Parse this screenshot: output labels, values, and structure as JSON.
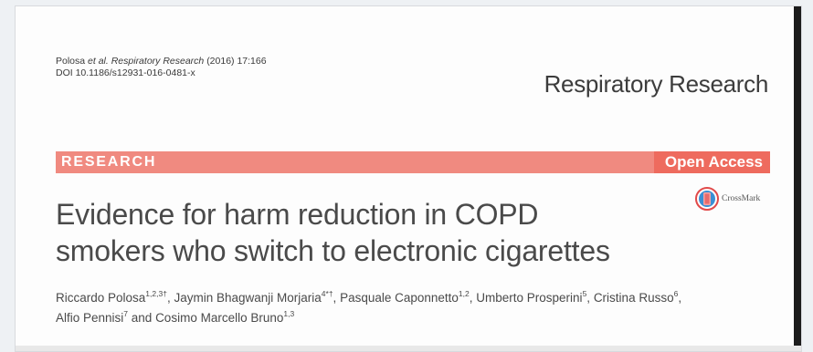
{
  "citation": {
    "authors": "Polosa",
    "etal": "et al.",
    "journal_short": "Respiratory Research",
    "year_ref": "(2016) 17:166",
    "doi": "DOI 10.1186/s12931-016-0481-x"
  },
  "journal_name": "Respiratory Research",
  "banner": {
    "article_type": "RESEARCH",
    "access": "Open Access",
    "color": "#f08a80",
    "access_color": "#ee6b5e"
  },
  "crossmark": {
    "label": "CrossMark",
    "icon": "crossmark-icon"
  },
  "title": {
    "line1": "Evidence for harm reduction in COPD",
    "line2": "smokers who switch to electronic cigarettes"
  },
  "authors": [
    {
      "name": "Riccardo Polosa",
      "sup": "1,2,3†",
      "sep": ", "
    },
    {
      "name": "Jaymin Bhagwanji Morjaria",
      "sup": "4*†",
      "sep": ", "
    },
    {
      "name": "Pasquale Caponnetto",
      "sup": "1,2",
      "sep": ", "
    },
    {
      "name": "Umberto Prosperini",
      "sup": "5",
      "sep": ", "
    },
    {
      "name": "Cristina Russo",
      "sup": "6",
      "sep": ","
    },
    {
      "name": "Alfio Pennisi",
      "sup": "7",
      "sep": " and "
    },
    {
      "name": "Cosimo Marcello Bruno",
      "sup": "1,3",
      "sep": ""
    }
  ]
}
